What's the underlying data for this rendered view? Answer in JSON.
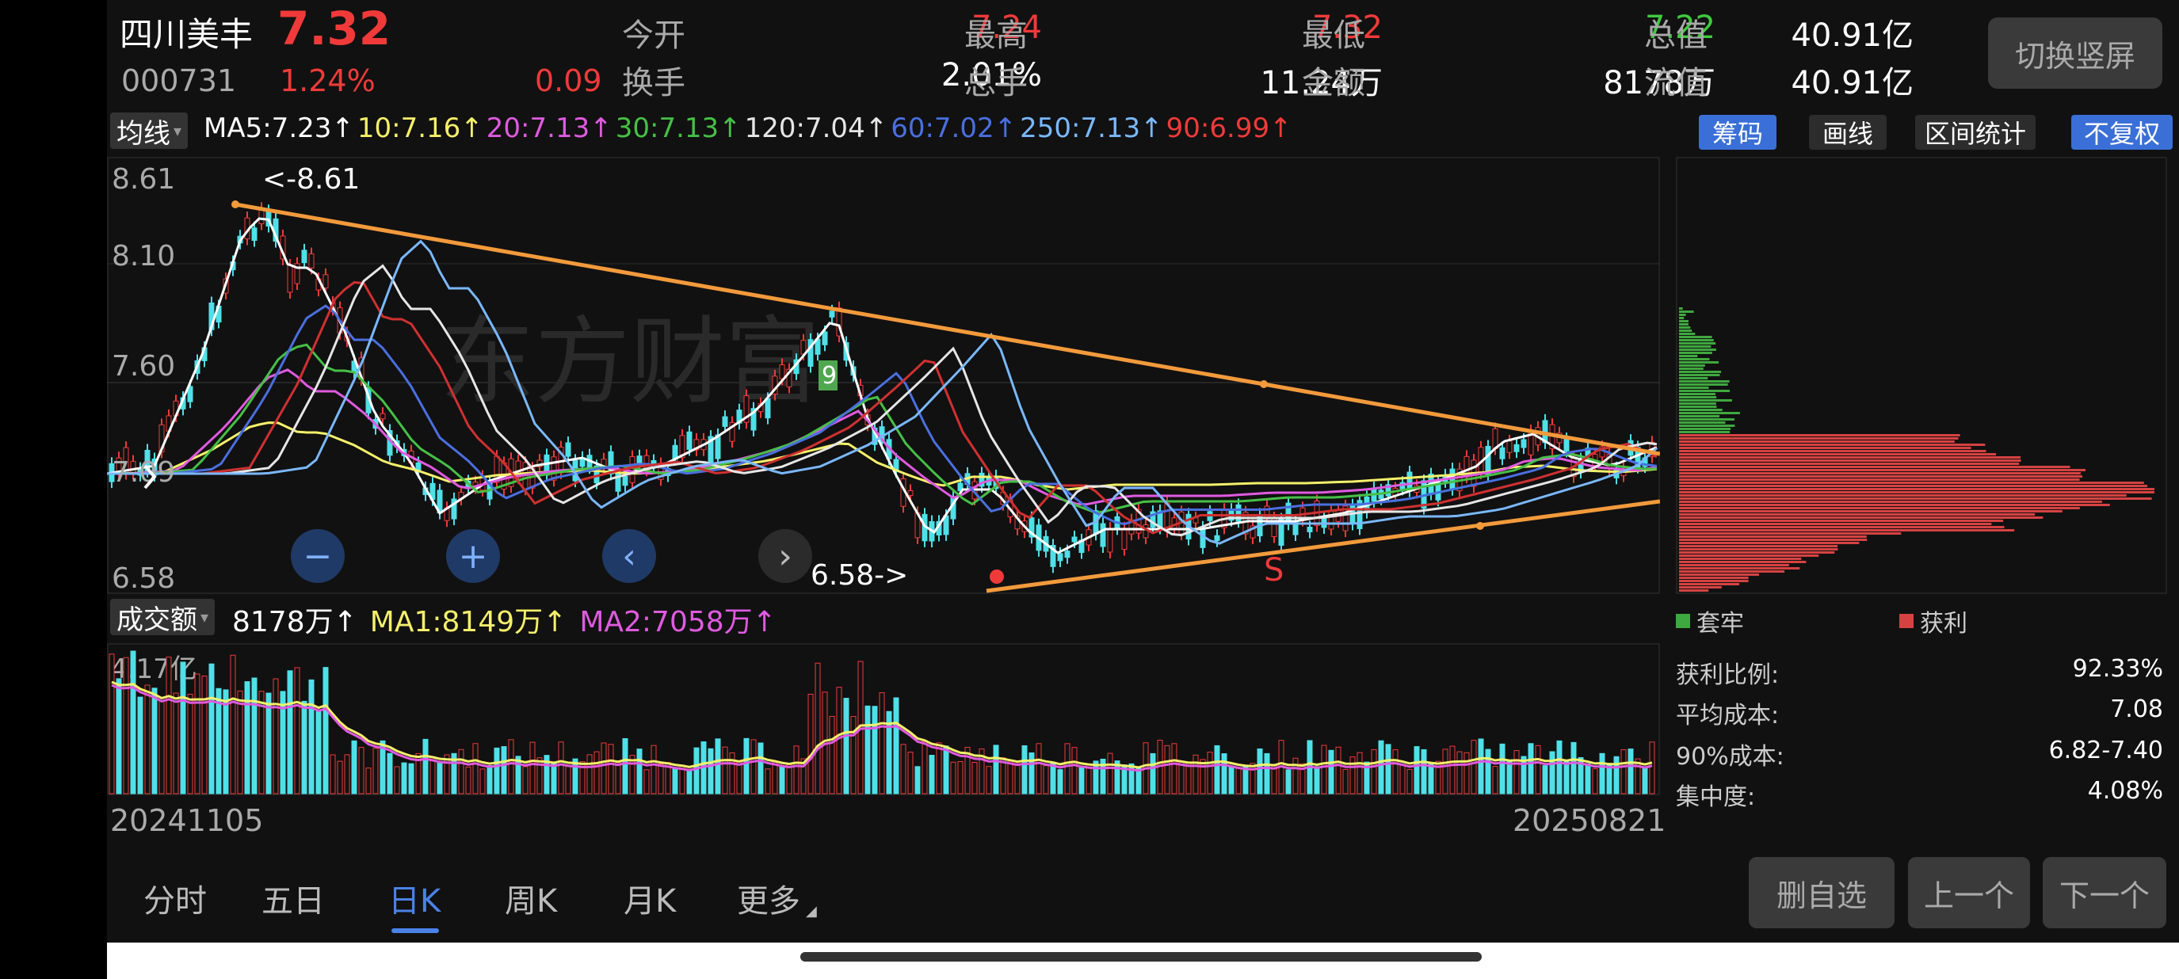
{
  "stock": {
    "name": "四川美丰",
    "price": "7.32",
    "code": "000731",
    "change_pct": "1.24%",
    "change": "0.09"
  },
  "quote": {
    "open_label": "今开",
    "open": "7.24",
    "high_label": "最高",
    "high": "7.32",
    "low_label": "最低",
    "low": "7.22",
    "total_value_label": "总值",
    "total_value": "40.91亿",
    "turnover_label": "换手",
    "turnover": "2.01%",
    "volume_label": "总手",
    "volume": "11.24万",
    "amount_label": "金额",
    "amount": "8178万",
    "float_value_label": "流值",
    "float_value": "40.91亿"
  },
  "switch_button": "切换竖屏",
  "ma_bar": {
    "selector": "均线",
    "ma5": "MA5:7.23↑",
    "ma10": "10:7.16↑",
    "ma20": "20:7.13↑",
    "ma30": "30:7.13↑",
    "ma120": "120:7.04↑",
    "ma60": "60:7.02↑",
    "ma250": "250:7.13↑",
    "ma90": "90:6.99↑"
  },
  "tags": {
    "chips": "筹码",
    "draw": "画线",
    "range_stats": "区间统计",
    "no_adjust": "不复权"
  },
  "price_axis": [
    "8.61",
    "8.10",
    "7.60",
    "7.09",
    "6.58"
  ],
  "annotations": {
    "high_mark": "<-8.61",
    "low_mark": "6.58->",
    "td_nine": "9",
    "s_mark": "S",
    "watermark": "东方财富"
  },
  "volume_bar": {
    "selector": "成交额",
    "value": "8178万↑",
    "ma1": "MA1:8149万↑",
    "ma2": "MA2:7058万↑",
    "axis_top": "4.17亿"
  },
  "dates": {
    "start": "20241105",
    "end": "20250821"
  },
  "chip_legend": {
    "trapped": "套牢",
    "profit": "获利"
  },
  "chip_stats": [
    {
      "label": "获利比例:",
      "value": "92.33%"
    },
    {
      "label": "平均成本:",
      "value": "7.08"
    },
    {
      "label": "90%成本:",
      "value": "6.82-7.40"
    },
    {
      "label": "集中度:",
      "value": "4.08%"
    }
  ],
  "bottom_tabs": [
    "分时",
    "五日",
    "日K",
    "周K",
    "月K",
    "更多"
  ],
  "bottom_buttons": {
    "remove": "删自选",
    "prev": "上一个",
    "next": "下一个"
  },
  "colors": {
    "up": "#f03a3a",
    "down": "#4fe0e8",
    "accent": "#3a6fd8",
    "trend": "#f39a3c",
    "ma5": "#ffffff",
    "ma10": "#f5f06a",
    "ma20": "#e05ae0",
    "ma30": "#46c046"
  },
  "chart_data": {
    "type": "candlestick",
    "price_range": [
      6.58,
      8.61
    ],
    "period": [
      "20241105",
      "20250821"
    ],
    "last_close": 7.32,
    "high": 8.61,
    "low": 6.58
  }
}
